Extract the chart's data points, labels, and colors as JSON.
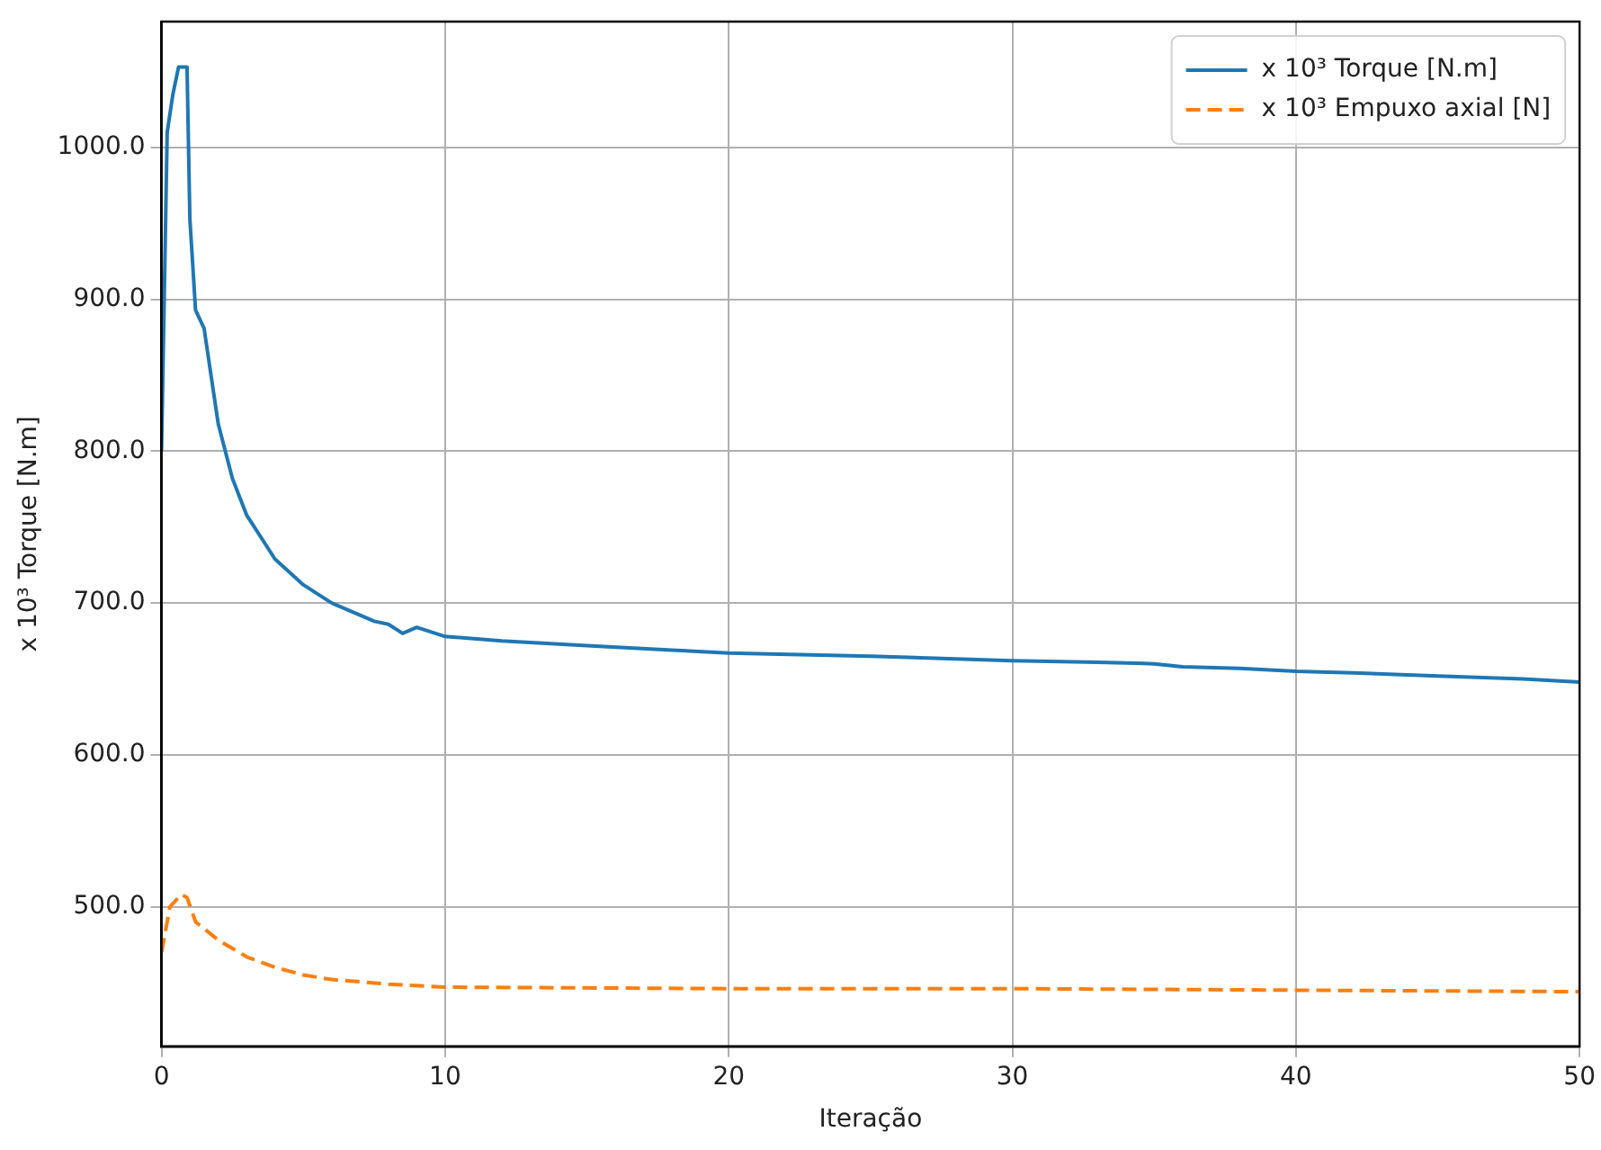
{
  "chart_data": {
    "type": "line",
    "xlabel": "Iteração",
    "ylabel": "x 10³ Torque [N.m]",
    "xlim": [
      0,
      50
    ],
    "xticks": [
      0,
      10,
      20,
      30,
      40,
      50
    ],
    "ylim": [
      408,
      1083
    ],
    "yticks": [
      {
        "value": 500,
        "label": "500.0"
      },
      {
        "value": 600,
        "label": "600.0"
      },
      {
        "value": 700,
        "label": "700.0"
      },
      {
        "value": 800,
        "label": "800.0"
      },
      {
        "value": 900,
        "label": "900.0"
      },
      {
        "value": 1000,
        "label": "1000.0"
      }
    ],
    "grid": true,
    "legend": "top right",
    "marker": "none",
    "series": [
      {
        "name": "x 10³ Torque [N.m]",
        "color": "#1f77b4",
        "line_style": "solid",
        "x": [
          0,
          0.2,
          0.4,
          0.6,
          0.9,
          1.0,
          1.2,
          1.5,
          2,
          2.5,
          3,
          4,
          5,
          6,
          7,
          7.5,
          8,
          8.5,
          9,
          10,
          12,
          15,
          18,
          20,
          25,
          30,
          33,
          35,
          36,
          38,
          40,
          42,
          45,
          48,
          50
        ],
        "values": [
          800,
          1010,
          1035,
          1053,
          1053,
          953,
          893,
          881,
          818,
          782,
          758,
          729,
          712,
          700,
          692,
          688,
          686,
          680,
          684,
          678,
          675,
          672,
          669,
          667,
          665,
          662,
          661,
          660,
          658,
          657,
          655,
          654,
          652,
          650,
          648
        ]
      },
      {
        "name": "x 10³ Empuxo axial [N]",
        "color": "#ff7f0e",
        "line_style": "dashed",
        "x": [
          0,
          0.3,
          0.7,
          0.9,
          1.2,
          2,
          3,
          4,
          5,
          6,
          8,
          10,
          20,
          30,
          40,
          50
        ],
        "values": [
          470,
          500,
          508,
          506,
          490,
          478,
          467,
          460,
          455,
          452,
          449,
          447,
          446,
          446,
          445,
          444
        ]
      }
    ]
  }
}
